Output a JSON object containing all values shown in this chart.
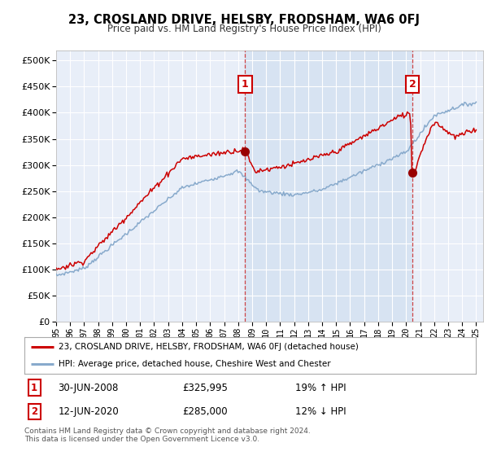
{
  "title": "23, CROSLAND DRIVE, HELSBY, FRODSHAM, WA6 0FJ",
  "subtitle": "Price paid vs. HM Land Registry's House Price Index (HPI)",
  "ytick_values": [
    0,
    50000,
    100000,
    150000,
    200000,
    250000,
    300000,
    350000,
    400000,
    450000,
    500000
  ],
  "ylim": [
    0,
    520000
  ],
  "xlim_start": 1995.0,
  "xlim_end": 2025.5,
  "background_color": "#e8eef8",
  "fig_bg": "#ffffff",
  "grid_color": "#ffffff",
  "red_color": "#cc0000",
  "blue_color": "#88aacc",
  "shade_color": "#d0dff0",
  "marker1_date": 2008.5,
  "marker2_date": 2020.45,
  "marker1_price": 325995,
  "marker2_price": 285000,
  "legend_line1": "23, CROSLAND DRIVE, HELSBY, FRODSHAM, WA6 0FJ (detached house)",
  "legend_line2": "HPI: Average price, detached house, Cheshire West and Chester",
  "table_row1_num": "1",
  "table_row1_date": "30-JUN-2008",
  "table_row1_price": "£325,995",
  "table_row1_hpi": "19% ↑ HPI",
  "table_row2_num": "2",
  "table_row2_date": "12-JUN-2020",
  "table_row2_price": "£285,000",
  "table_row2_hpi": "12% ↓ HPI",
  "footnote": "Contains HM Land Registry data © Crown copyright and database right 2024.\nThis data is licensed under the Open Government Licence v3.0.",
  "xtick_years": [
    1995,
    1996,
    1997,
    1998,
    1999,
    2000,
    2001,
    2002,
    2003,
    2004,
    2005,
    2006,
    2007,
    2008,
    2009,
    2010,
    2011,
    2012,
    2013,
    2014,
    2015,
    2016,
    2017,
    2018,
    2019,
    2020,
    2021,
    2022,
    2023,
    2024,
    2025
  ]
}
